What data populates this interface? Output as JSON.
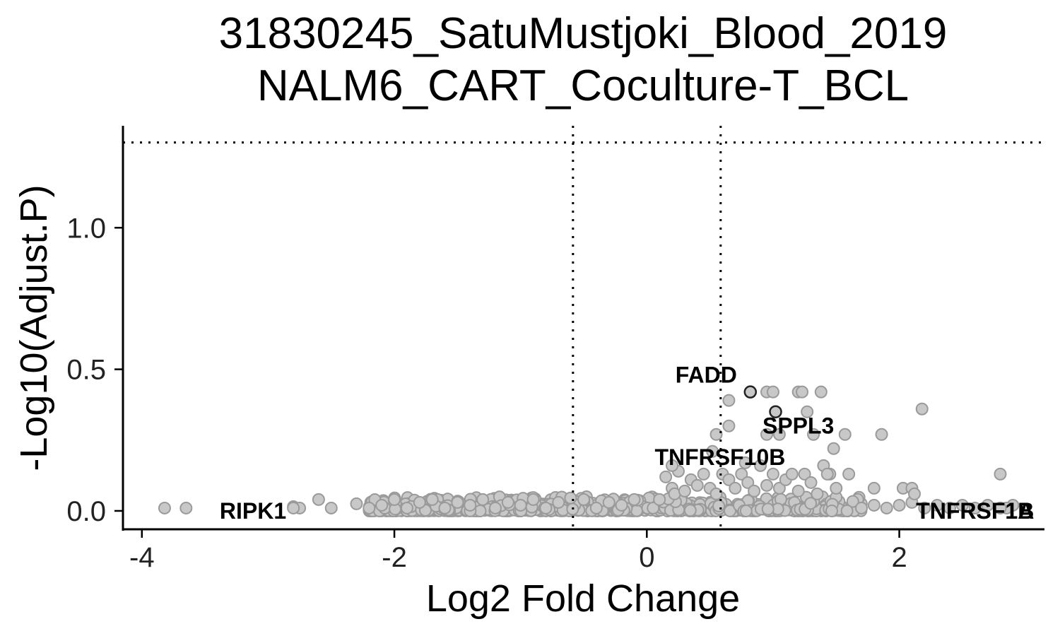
{
  "chart_data": {
    "type": "scatter",
    "title_lines": [
      "31830245_SatuMustjoki_Blood_2019",
      "NALM6_CART_Coculture-T_BCL"
    ],
    "xlabel": "Log2 Fold Change",
    "ylabel": "-Log10(Adjust.P)",
    "xlim": [
      -4.15,
      3.15
    ],
    "ylim": [
      -0.065,
      1.36
    ],
    "x_ticks": [
      {
        "value": -4,
        "label": "-4"
      },
      {
        "value": -2,
        "label": "-2"
      },
      {
        "value": 0,
        "label": "0"
      },
      {
        "value": 2,
        "label": "2"
      }
    ],
    "y_ticks": [
      {
        "value": 0.0,
        "label": "0.0"
      },
      {
        "value": 0.5,
        "label": "0.5"
      },
      {
        "value": 1.0,
        "label": "1.0"
      }
    ],
    "thresholds": {
      "vertical": [
        -0.585,
        0.585
      ],
      "horizontal": 1.301
    },
    "colors": {
      "point_fill": "#c8c8c8",
      "point_stroke": "#9a9a9a",
      "highlight_stroke": "#222222",
      "threshold": "#000000"
    },
    "grid": false,
    "background_points": [
      [
        -3.82,
        0.01
      ],
      [
        -3.65,
        0.01
      ],
      [
        -2.8,
        0.015
      ],
      [
        -2.75,
        0.01
      ],
      [
        -2.6,
        0.04
      ],
      [
        -2.5,
        0.01
      ],
      [
        -2.3,
        0.025
      ],
      [
        -2.2,
        0.01
      ],
      [
        -2.1,
        0.02
      ],
      [
        -2.0,
        0.04
      ],
      [
        -1.9,
        0.01
      ],
      [
        -1.8,
        0.03
      ],
      [
        -1.7,
        0.04
      ],
      [
        -1.6,
        0.01
      ],
      [
        -1.5,
        0.03
      ],
      [
        -1.4,
        0.02
      ],
      [
        -1.3,
        0.04
      ],
      [
        -1.2,
        0.01
      ],
      [
        -1.1,
        0.03
      ],
      [
        -1.0,
        0.02
      ],
      [
        -0.9,
        0.04
      ],
      [
        -0.8,
        0.01
      ],
      [
        -0.7,
        0.03
      ],
      [
        -0.5,
        0.04
      ],
      [
        -0.4,
        0.01
      ],
      [
        -0.3,
        0.03
      ],
      [
        -0.2,
        0.02
      ],
      [
        -0.1,
        0.04
      ],
      [
        0.05,
        0.01
      ],
      [
        0.1,
        0.04
      ],
      [
        0.15,
        0.12
      ],
      [
        0.2,
        0.08
      ],
      [
        0.22,
        0.06
      ],
      [
        0.25,
        0.14
      ],
      [
        0.3,
        0.07
      ],
      [
        0.35,
        0.11
      ],
      [
        0.4,
        0.09
      ],
      [
        0.45,
        0.13
      ],
      [
        0.5,
        0.08
      ],
      [
        0.55,
        0.06
      ],
      [
        0.6,
        0.13
      ],
      [
        0.65,
        0.11
      ],
      [
        0.7,
        0.08
      ],
      [
        0.75,
        0.13
      ],
      [
        0.8,
        0.1
      ],
      [
        0.85,
        0.07
      ],
      [
        0.9,
        0.16
      ],
      [
        0.95,
        0.09
      ],
      [
        1.0,
        0.13
      ],
      [
        1.05,
        0.08
      ],
      [
        1.1,
        0.11
      ],
      [
        1.15,
        0.13
      ],
      [
        1.2,
        0.07
      ],
      [
        1.25,
        0.13
      ],
      [
        1.3,
        0.1
      ],
      [
        1.35,
        0.06
      ],
      [
        1.4,
        0.16
      ],
      [
        1.45,
        0.13
      ],
      [
        1.5,
        0.08
      ],
      [
        1.6,
        0.13
      ],
      [
        1.7,
        0.01
      ],
      [
        1.8,
        0.02
      ],
      [
        1.9,
        0.01
      ],
      [
        2.0,
        0.02
      ],
      [
        2.1,
        0.03
      ],
      [
        2.2,
        0.01
      ],
      [
        2.3,
        0.02
      ],
      [
        2.4,
        0.01
      ],
      [
        2.5,
        0.02
      ],
      [
        2.6,
        0.01
      ],
      [
        2.7,
        0.02
      ],
      [
        2.8,
        0.01
      ],
      [
        2.9,
        0.02
      ],
      [
        0.65,
        0.39
      ],
      [
        0.65,
        0.3
      ],
      [
        0.55,
        0.27
      ],
      [
        0.95,
        0.42
      ],
      [
        1.0,
        0.42
      ],
      [
        1.2,
        0.42
      ],
      [
        1.23,
        0.42
      ],
      [
        1.38,
        0.42
      ],
      [
        1.27,
        0.35
      ],
      [
        1.32,
        0.27
      ],
      [
        1.57,
        0.27
      ],
      [
        1.86,
        0.27
      ],
      [
        2.18,
        0.36
      ],
      [
        1.48,
        0.22
      ],
      [
        1.43,
        0.13
      ],
      [
        1.8,
        0.08
      ],
      [
        2.03,
        0.08
      ],
      [
        2.1,
        0.08
      ],
      [
        2.12,
        0.06
      ],
      [
        2.8,
        0.13
      ],
      [
        0.95,
        0.27
      ],
      [
        1.05,
        0.27
      ],
      [
        0.52,
        0.21
      ],
      [
        0.2,
        0.16
      ]
    ],
    "labeled_points": [
      {
        "gene": "FADD",
        "x": 0.82,
        "y": 0.42,
        "label_x": 0.47,
        "label_y": 0.48,
        "highlight": true
      },
      {
        "gene": "SPPL3",
        "x": 1.02,
        "y": 0.35,
        "label_x": 1.2,
        "label_y": 0.3,
        "highlight": true
      },
      {
        "gene": "TNFRSF10B",
        "x": 0.78,
        "y": 0.17,
        "label_x": 0.58,
        "label_y": 0.19,
        "highlight": false
      },
      {
        "gene": "RIPK1",
        "x": -2.8,
        "y": 0.01,
        "label_x": -3.12,
        "label_y": 0.0,
        "highlight": false
      },
      {
        "gene": "TNFRSF1A",
        "x": 2.85,
        "y": 0.01,
        "label_x": 2.6,
        "label_y": 0.0,
        "highlight": false
      },
      {
        "gene": "TNFRSF1B",
        "x": 2.8,
        "y": 0.01,
        "label_x": 2.6,
        "label_y": 0.0,
        "highlight": false
      }
    ]
  }
}
